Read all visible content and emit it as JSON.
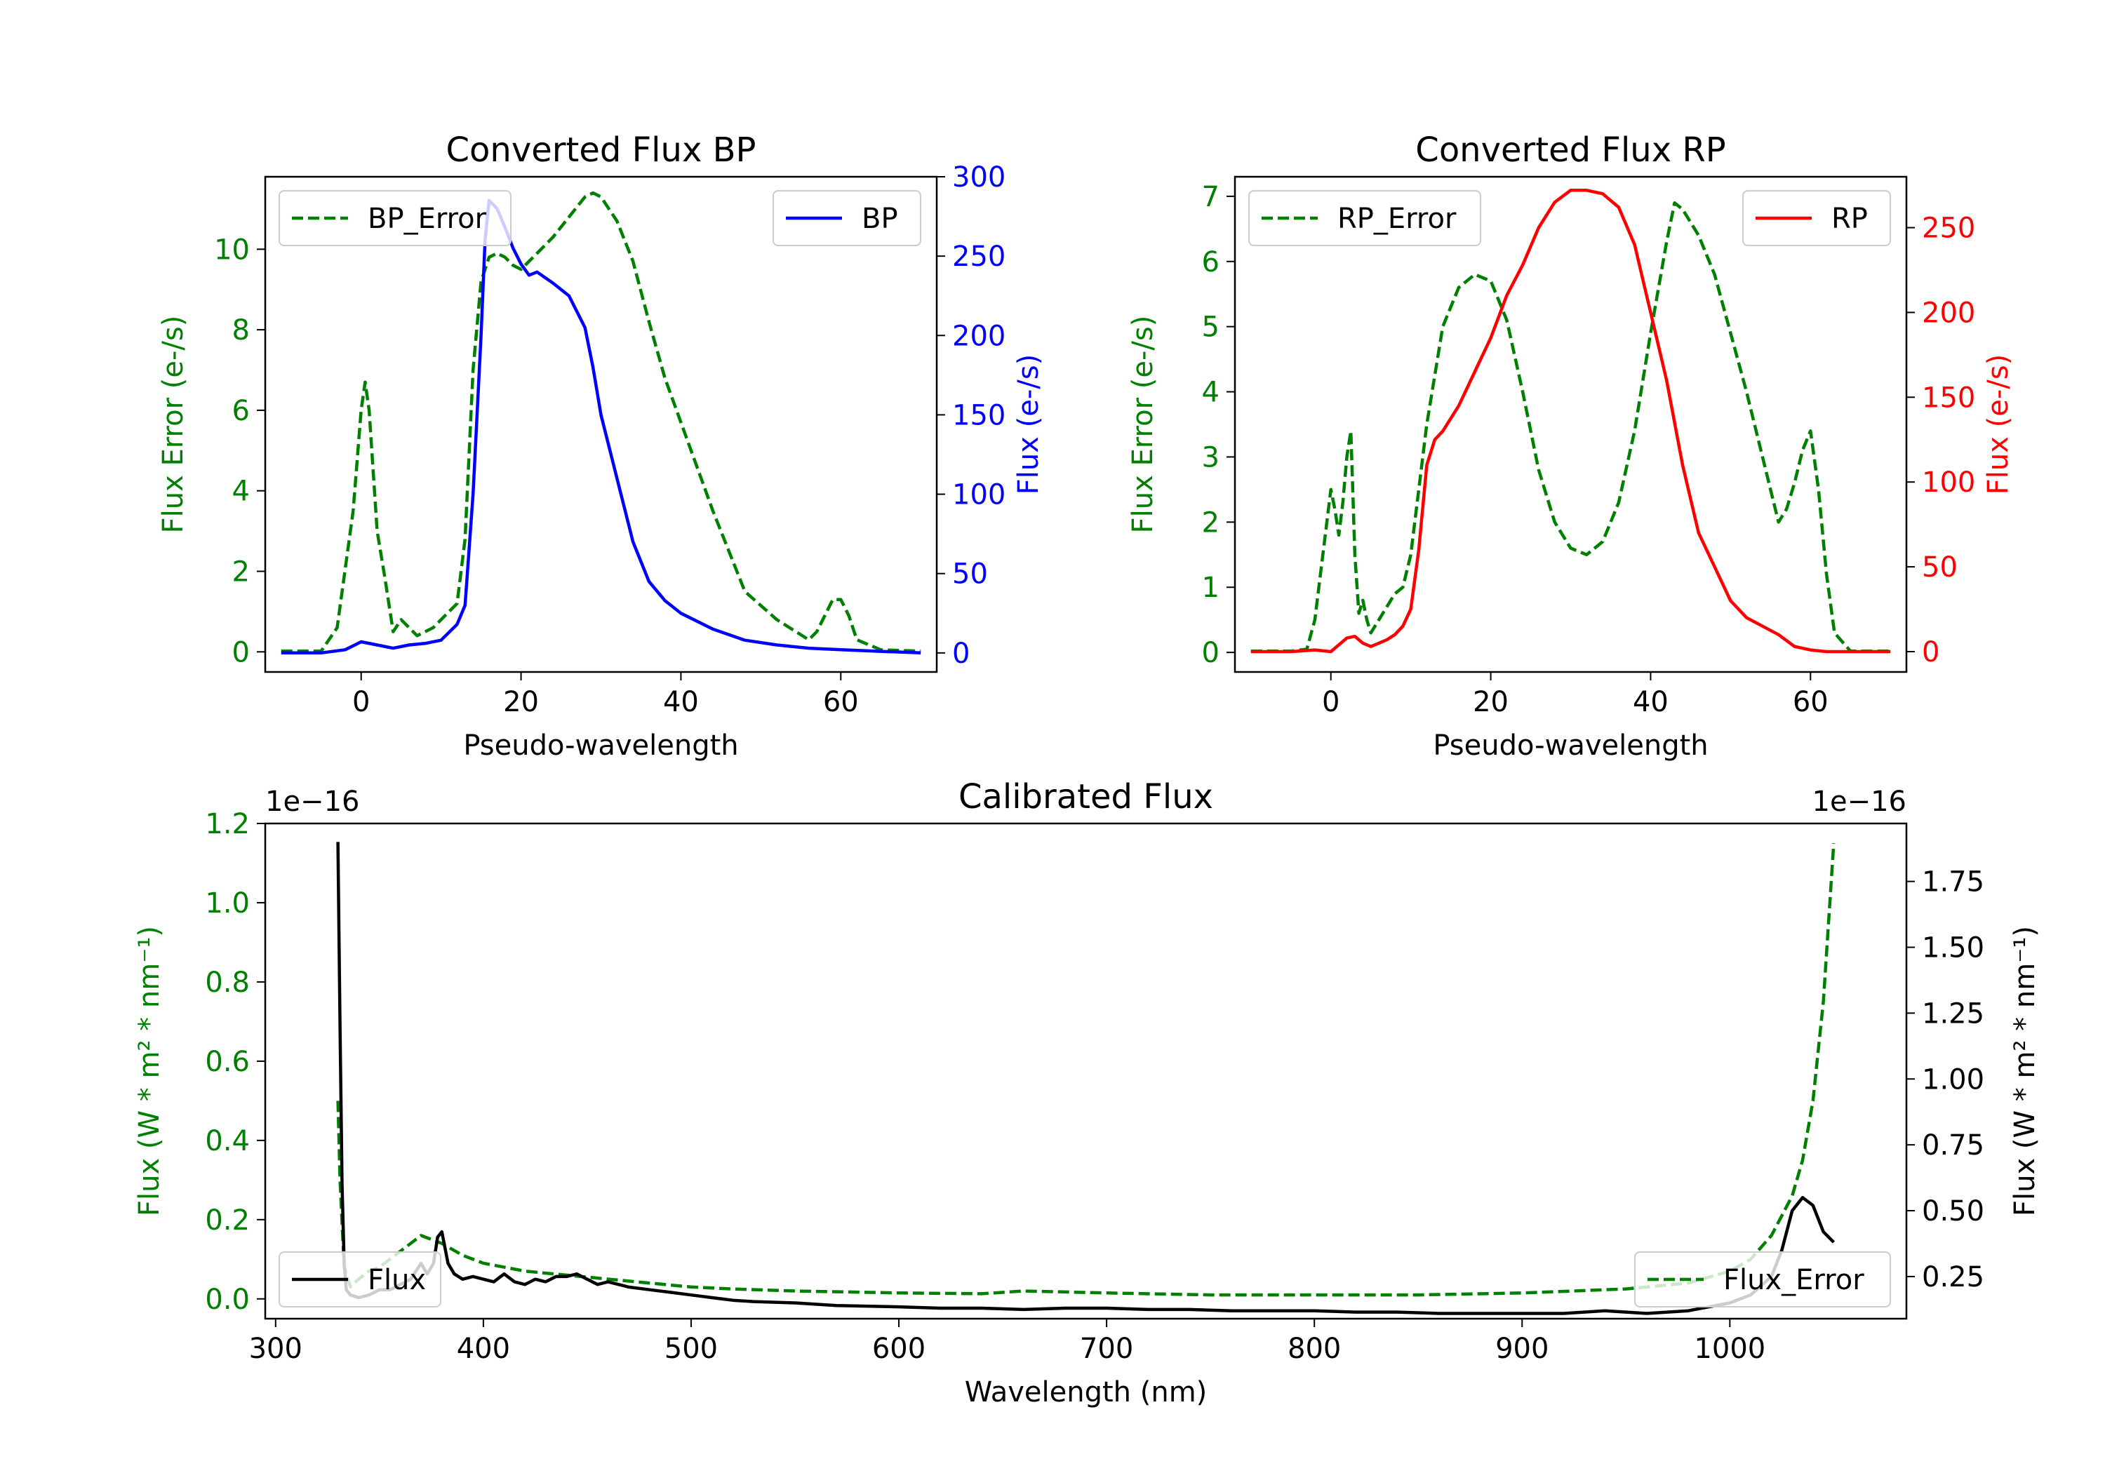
{
  "chart_data": [
    {
      "id": "bp",
      "type": "line",
      "title": "Converted Flux BP",
      "xlabel": "Pseudo-wavelength",
      "xlim": [
        -12,
        72
      ],
      "xticks": [
        0,
        20,
        40,
        60
      ],
      "left_axis": {
        "label": "Flux Error (e-/s)",
        "color": "#008000",
        "ylim": [
          -0.5,
          11.8
        ],
        "ticks": [
          0,
          2,
          4,
          6,
          8,
          10
        ]
      },
      "right_axis": {
        "label": "Flux (e-/s)",
        "color": "#0000ff",
        "ylim": [
          -12,
          300
        ],
        "ticks": [
          0,
          50,
          100,
          150,
          200,
          250,
          300
        ]
      },
      "series": [
        {
          "name": "BP_Error",
          "axis": "left",
          "color": "#008000",
          "dash": true,
          "x": [
            -10,
            -5,
            -3,
            -1,
            0,
            0.5,
            1,
            2,
            3,
            4,
            5,
            6,
            7,
            8,
            9,
            10,
            12,
            13,
            14,
            15,
            16,
            17,
            18,
            19,
            20,
            22,
            24,
            26,
            28,
            29,
            30,
            32,
            34,
            36,
            38,
            40,
            44,
            48,
            52,
            56,
            57,
            58,
            59,
            60,
            61,
            62,
            65,
            70
          ],
          "y": [
            0.02,
            0.02,
            0.6,
            3.5,
            6.0,
            6.7,
            6.0,
            3.0,
            1.8,
            0.5,
            0.8,
            0.6,
            0.4,
            0.5,
            0.6,
            0.8,
            1.2,
            2.8,
            7.0,
            9.2,
            9.8,
            9.9,
            9.8,
            9.6,
            9.5,
            9.9,
            10.3,
            10.8,
            11.3,
            11.4,
            11.3,
            10.7,
            9.7,
            8.2,
            6.8,
            5.7,
            3.5,
            1.5,
            0.8,
            0.3,
            0.5,
            0.9,
            1.3,
            1.3,
            0.9,
            0.3,
            0.05,
            0.02
          ]
        },
        {
          "name": "BP",
          "axis": "right",
          "color": "#0000ff",
          "dash": false,
          "x": [
            -10,
            -5,
            -2,
            0,
            2,
            4,
            6,
            8,
            10,
            12,
            13,
            14,
            15,
            15.5,
            16,
            17,
            18,
            19,
            20,
            21,
            22,
            24,
            26,
            28,
            29,
            30,
            32,
            34,
            36,
            38,
            40,
            44,
            48,
            52,
            56,
            60,
            65,
            70
          ],
          "y": [
            0,
            0,
            2,
            7,
            5,
            3,
            5,
            6,
            8,
            18,
            30,
            100,
            200,
            260,
            285,
            280,
            268,
            255,
            245,
            238,
            240,
            233,
            225,
            205,
            180,
            150,
            110,
            70,
            45,
            33,
            25,
            15,
            8,
            5,
            3,
            2,
            1,
            0
          ]
        }
      ],
      "legend": [
        {
          "label": "BP_Error",
          "placement": "upper-left"
        },
        {
          "label": "BP",
          "placement": "upper-right"
        }
      ]
    },
    {
      "id": "rp",
      "type": "line",
      "title": "Converted Flux RP",
      "xlabel": "Pseudo-wavelength",
      "xlim": [
        -12,
        72
      ],
      "xticks": [
        0,
        20,
        40,
        60
      ],
      "left_axis": {
        "label": "Flux Error (e-/s)",
        "color": "#008000",
        "ylim": [
          -0.3,
          7.3
        ],
        "ticks": [
          0,
          1,
          2,
          3,
          4,
          5,
          6,
          7
        ]
      },
      "right_axis": {
        "label": "Flux (e-/s)",
        "color": "#ff0000",
        "ylim": [
          -12,
          280
        ],
        "ticks": [
          0,
          50,
          100,
          150,
          200,
          250
        ]
      },
      "series": [
        {
          "name": "RP_Error",
          "axis": "left",
          "color": "#008000",
          "dash": true,
          "x": [
            -10,
            -5,
            -3,
            -2,
            -1,
            0,
            0.5,
            1,
            1.5,
            2,
            2.5,
            3,
            3.5,
            4,
            4.5,
            5,
            6,
            7,
            8,
            9,
            10,
            12,
            14,
            16,
            18,
            20,
            22,
            24,
            26,
            28,
            30,
            32,
            34,
            36,
            38,
            40,
            42,
            43,
            44,
            46,
            48,
            50,
            52,
            54,
            55,
            56,
            57,
            58,
            59,
            60,
            61,
            62,
            63,
            65,
            70
          ],
          "y": [
            0.02,
            0.02,
            0.05,
            0.5,
            1.5,
            2.5,
            2.2,
            1.8,
            2.3,
            3.0,
            3.4,
            1.5,
            0.6,
            0.8,
            0.5,
            0.3,
            0.5,
            0.7,
            0.9,
            1.0,
            1.5,
            3.5,
            5.0,
            5.6,
            5.8,
            5.7,
            5.1,
            4.0,
            2.8,
            2.0,
            1.6,
            1.5,
            1.7,
            2.3,
            3.4,
            4.9,
            6.3,
            6.9,
            6.8,
            6.4,
            5.8,
            4.9,
            4.0,
            3.0,
            2.5,
            2.0,
            2.2,
            2.6,
            3.1,
            3.4,
            2.5,
            1.2,
            0.3,
            0.02,
            0.02
          ]
        },
        {
          "name": "RP",
          "axis": "right",
          "color": "#ff0000",
          "dash": false,
          "x": [
            -10,
            -5,
            -2,
            0,
            1,
            2,
            3,
            4,
            5,
            6,
            7,
            8,
            9,
            10,
            11,
            12,
            13,
            14,
            16,
            18,
            20,
            22,
            24,
            26,
            28,
            30,
            32,
            34,
            36,
            38,
            40,
            42,
            44,
            46,
            48,
            50,
            52,
            54,
            56,
            58,
            60,
            62,
            65,
            70
          ],
          "y": [
            0,
            0,
            1,
            0,
            4,
            8,
            9,
            5,
            3,
            5,
            7,
            10,
            15,
            25,
            60,
            110,
            125,
            130,
            145,
            165,
            185,
            210,
            228,
            250,
            265,
            272,
            272,
            270,
            262,
            240,
            200,
            160,
            110,
            70,
            50,
            30,
            20,
            15,
            10,
            3,
            1,
            0,
            0,
            0
          ]
        }
      ],
      "legend": [
        {
          "label": "RP_Error",
          "placement": "upper-left"
        },
        {
          "label": "RP",
          "placement": "upper-right"
        }
      ]
    },
    {
      "id": "cal",
      "type": "line",
      "title": "Calibrated Flux",
      "xlabel": "Wavelength (nm)",
      "xlim": [
        295,
        1085
      ],
      "xticks": [
        300,
        400,
        500,
        600,
        700,
        800,
        900,
        1000
      ],
      "left_axis": {
        "label": "Flux (W * m² * nm⁻¹)",
        "color": "#008000",
        "ylim": [
          -0.05,
          1.2
        ],
        "ticks": [
          0.0,
          0.2,
          0.4,
          0.6,
          0.8,
          1.0,
          1.2
        ],
        "ticklabels": [
          "0.0",
          "0.2",
          "0.4",
          "0.6",
          "0.8",
          "1.0",
          "1.2"
        ],
        "offset_text": "1e−16"
      },
      "right_axis": {
        "label": "Flux (W * m² * nm⁻¹)",
        "color": "#000000",
        "ylim": [
          0.09,
          1.97
        ],
        "ticks": [
          0.25,
          0.5,
          0.75,
          1.0,
          1.25,
          1.5,
          1.75
        ],
        "ticklabels": [
          "0.25",
          "0.50",
          "0.75",
          "1.00",
          "1.25",
          "1.50",
          "1.75"
        ],
        "offset_text": "1e−16"
      },
      "series": [
        {
          "name": "Flux_Error",
          "axis": "left",
          "color": "#008000",
          "dash": true,
          "x": [
            330,
            331,
            333,
            336,
            340,
            345,
            350,
            360,
            370,
            380,
            390,
            400,
            420,
            450,
            480,
            500,
            520,
            550,
            600,
            640,
            660,
            700,
            750,
            800,
            850,
            900,
            950,
            980,
            1000,
            1010,
            1020,
            1030,
            1035,
            1040,
            1045,
            1050
          ],
          "y": [
            0.5,
            0.3,
            0.08,
            0.03,
            0.05,
            0.07,
            0.08,
            0.12,
            0.16,
            0.14,
            0.11,
            0.09,
            0.07,
            0.055,
            0.04,
            0.03,
            0.025,
            0.02,
            0.015,
            0.013,
            0.02,
            0.015,
            0.01,
            0.01,
            0.01,
            0.015,
            0.025,
            0.04,
            0.07,
            0.1,
            0.16,
            0.26,
            0.35,
            0.5,
            0.75,
            1.15
          ]
        },
        {
          "name": "Flux",
          "axis": "right",
          "color": "#000000",
          "dash": false,
          "x": [
            330,
            331,
            332,
            333,
            334,
            336,
            340,
            345,
            350,
            355,
            360,
            365,
            370,
            373,
            376,
            378,
            380,
            383,
            386,
            390,
            395,
            400,
            405,
            410,
            415,
            420,
            425,
            430,
            435,
            440,
            445,
            450,
            455,
            460,
            470,
            480,
            490,
            500,
            510,
            520,
            530,
            550,
            570,
            600,
            620,
            640,
            660,
            680,
            700,
            720,
            740,
            760,
            780,
            800,
            820,
            840,
            860,
            880,
            900,
            920,
            940,
            960,
            980,
            1000,
            1010,
            1020,
            1025,
            1030,
            1035,
            1040,
            1045,
            1050
          ],
          "y": [
            1.9,
            1.2,
            0.6,
            0.3,
            0.2,
            0.18,
            0.17,
            0.18,
            0.2,
            0.2,
            0.22,
            0.24,
            0.3,
            0.26,
            0.3,
            0.4,
            0.42,
            0.3,
            0.26,
            0.24,
            0.25,
            0.24,
            0.23,
            0.26,
            0.23,
            0.22,
            0.24,
            0.23,
            0.25,
            0.25,
            0.26,
            0.24,
            0.22,
            0.23,
            0.21,
            0.2,
            0.19,
            0.18,
            0.17,
            0.16,
            0.155,
            0.15,
            0.14,
            0.135,
            0.13,
            0.13,
            0.125,
            0.13,
            0.13,
            0.125,
            0.125,
            0.12,
            0.12,
            0.12,
            0.115,
            0.115,
            0.11,
            0.11,
            0.11,
            0.11,
            0.12,
            0.11,
            0.12,
            0.15,
            0.18,
            0.25,
            0.35,
            0.5,
            0.55,
            0.52,
            0.42,
            0.38
          ]
        }
      ],
      "legend": [
        {
          "label": "Flux",
          "placement": "lower-left"
        },
        {
          "label": "Flux_Error",
          "placement": "lower-right"
        }
      ]
    }
  ]
}
